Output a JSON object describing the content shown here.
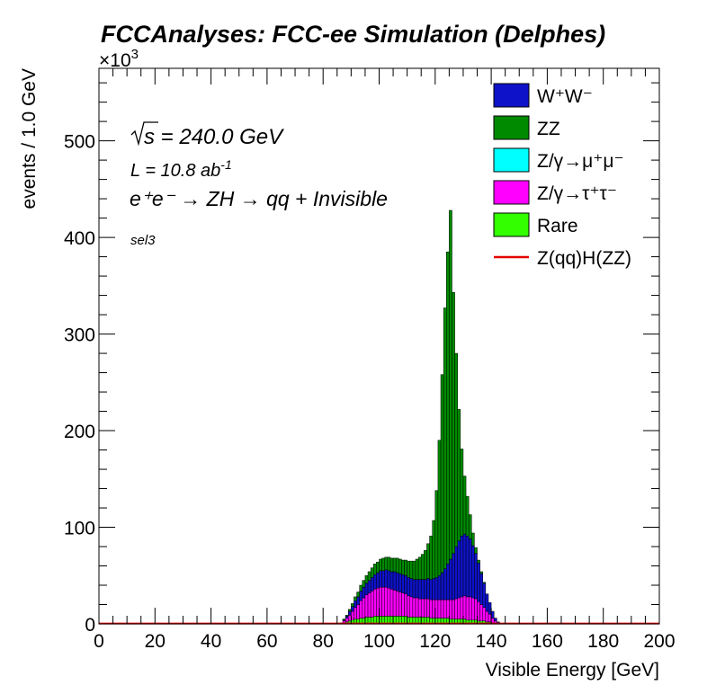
{
  "title": "FCCAnalyses: FCC-ee Simulation (Delphes)",
  "annotations": {
    "sqrt_s_prefix": "s",
    "sqrt_s_value": " = 240.0 GeV",
    "lumi_prefix": "L = 10.8 ab",
    "lumi_exp": "-1",
    "process": "e⁺e⁻ → ZH → qq + Invisible",
    "selection": "sel3"
  },
  "colors": {
    "WW": "#0e12c8",
    "ZZ": "#008a00",
    "Zmumu": "#00ffff",
    "Ztautau": "#ff00ff",
    "Rare": "#33ff00",
    "signal": "#e60000"
  },
  "chart_data": {
    "type": "area",
    "stacked": true,
    "xlabel": "Visible Energy [GeV]",
    "ylabel": "events / 1.0 GeV",
    "y_multiplier_label": "×10",
    "y_multiplier_exp": "3",
    "xlim": [
      0,
      200
    ],
    "ylim": [
      0,
      575
    ],
    "xticks": [
      0,
      20,
      40,
      60,
      80,
      100,
      120,
      140,
      160,
      180,
      200
    ],
    "yticks": [
      0,
      100,
      200,
      300,
      400,
      500
    ],
    "x": [
      85,
      86,
      87,
      88,
      89,
      90,
      91,
      92,
      93,
      94,
      95,
      96,
      97,
      98,
      99,
      100,
      101,
      102,
      103,
      104,
      105,
      106,
      107,
      108,
      109,
      110,
      111,
      112,
      113,
      114,
      115,
      116,
      117,
      118,
      119,
      120,
      121,
      122,
      123,
      124,
      125,
      126,
      127,
      128,
      129,
      130,
      131,
      132,
      133,
      134,
      135,
      136,
      137,
      138,
      139,
      140,
      141,
      142,
      143,
      144
    ],
    "series": [
      {
        "name": "Rare",
        "color_key": "Rare",
        "values": [
          0,
          0,
          1,
          2,
          3,
          4,
          5,
          5,
          6,
          6,
          7,
          7,
          7,
          8,
          8,
          8,
          8,
          8,
          8,
          8,
          8,
          8,
          8,
          8,
          8,
          7,
          7,
          7,
          7,
          7,
          7,
          7,
          7,
          6,
          6,
          6,
          6,
          6,
          6,
          6,
          5,
          5,
          5,
          5,
          5,
          5,
          4,
          4,
          4,
          4,
          3,
          3,
          3,
          2,
          2,
          1,
          1,
          0,
          0,
          0
        ]
      },
      {
        "name": "Z/γ→τ⁺τ⁻",
        "color_key": "Ztautau",
        "values": [
          0,
          1,
          2,
          4,
          6,
          9,
          12,
          15,
          18,
          21,
          23,
          25,
          27,
          28,
          29,
          30,
          30,
          30,
          29,
          28,
          27,
          26,
          25,
          24,
          23,
          22,
          21,
          20,
          20,
          19,
          19,
          19,
          19,
          19,
          19,
          19,
          19,
          19,
          19,
          19,
          20,
          20,
          21,
          22,
          23,
          24,
          24,
          24,
          23,
          22,
          20,
          17,
          14,
          11,
          8,
          5,
          2,
          1,
          0,
          0
        ]
      },
      {
        "name": "Z/γ→μ⁺μ⁻",
        "color_key": "Zmumu",
        "values": [
          0,
          0,
          0,
          0,
          0,
          0,
          0,
          0,
          0,
          0,
          0,
          0,
          0,
          0,
          0,
          0,
          0,
          0,
          0,
          0,
          0,
          0,
          0,
          0,
          0,
          0,
          0,
          0,
          0,
          0,
          0,
          0,
          0,
          0,
          0,
          0,
          0,
          0,
          0,
          0,
          0,
          0,
          0,
          0,
          0,
          0,
          0,
          0,
          0,
          0,
          0,
          0,
          0,
          0,
          0,
          0,
          0,
          0,
          0,
          0
        ]
      },
      {
        "name": "W⁺W⁻",
        "color_key": "WW",
        "values": [
          0,
          0,
          1,
          2,
          4,
          5,
          7,
          8,
          10,
          11,
          12,
          13,
          14,
          15,
          16,
          17,
          17,
          18,
          18,
          18,
          19,
          19,
          19,
          19,
          19,
          19,
          19,
          19,
          19,
          20,
          20,
          20,
          21,
          21,
          22,
          23,
          25,
          28,
          32,
          37,
          42,
          48,
          54,
          59,
          63,
          64,
          63,
          60,
          54,
          47,
          40,
          32,
          25,
          18,
          12,
          7,
          3,
          1,
          0,
          0
        ]
      },
      {
        "name": "ZZ",
        "color_key": "ZZ",
        "values": [
          0,
          0,
          1,
          1,
          2,
          3,
          4,
          5,
          6,
          7,
          8,
          9,
          10,
          11,
          11,
          12,
          13,
          13,
          14,
          14,
          14,
          15,
          15,
          15,
          16,
          17,
          18,
          19,
          21,
          23,
          26,
          30,
          36,
          45,
          60,
          90,
          140,
          205,
          270,
          323,
          361,
          270,
          200,
          136,
          90,
          60,
          41,
          25,
          13,
          6,
          3,
          2,
          1,
          0,
          0,
          0,
          0,
          0,
          0,
          0
        ]
      }
    ],
    "signal": {
      "name": "Z(qq)H(ZZ)",
      "color_key": "signal",
      "level": 0.3
    },
    "legend": {
      "position": "top-right",
      "entries": [
        {
          "label": "W⁺W⁻",
          "color_key": "WW",
          "kind": "box"
        },
        {
          "label": "ZZ",
          "color_key": "ZZ",
          "kind": "box"
        },
        {
          "label": "Z/γ→μ⁺μ⁻",
          "color_key": "Zmumu",
          "kind": "box"
        },
        {
          "label": "Z/γ→τ⁺τ⁻",
          "color_key": "Ztautau",
          "kind": "box"
        },
        {
          "label": "Rare",
          "color_key": "Rare",
          "kind": "box"
        },
        {
          "label": "Z(qq)H(ZZ)",
          "color_key": "signal",
          "kind": "line"
        }
      ]
    }
  }
}
